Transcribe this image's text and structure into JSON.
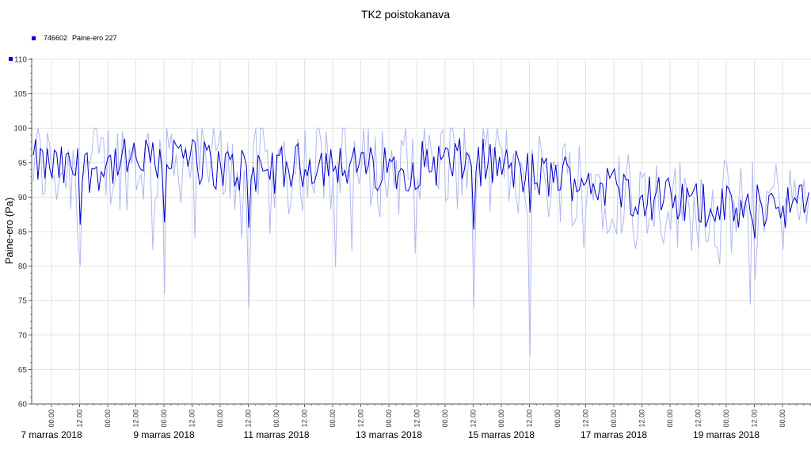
{
  "chart_data": {
    "type": "line",
    "title": "TK2 poistokanava",
    "ylabel": "Paine-ero (Pa)",
    "xlabel": "",
    "ylim": [
      60,
      110
    ],
    "y_ticks": [
      "60",
      "65",
      "70",
      "75",
      "80",
      "85",
      "90",
      "95",
      "100",
      "105",
      "110"
    ],
    "grid": true,
    "legend_position": "top-left",
    "series": [
      {
        "name": "746602 Paine-ero 227",
        "legend_id": "746602",
        "legend_label": "Paine-ero 227",
        "color": "#0000cc",
        "light_color": "#b0b8f0",
        "x_start": "7 marras 2018 00.00",
        "x_end": "20 marras 2018 12.00",
        "interval_hours": 1,
        "profile_12h": [
          95,
          94,
          94,
          95,
          95,
          96,
          95,
          94,
          94,
          94,
          95,
          95,
          94,
          94,
          95,
          95,
          95,
          94,
          93,
          93,
          92,
          91,
          90,
          89,
          89,
          88,
          89,
          89,
          88,
          87,
          86,
          85,
          87,
          89,
          91,
          92,
          92,
          93,
          93,
          93,
          93,
          94,
          94,
          95,
          95,
          95,
          96,
          96,
          96,
          96,
          95,
          95,
          94,
          94,
          93,
          92,
          92,
          93,
          93,
          94,
          93,
          92,
          94,
          94,
          94
        ],
        "noise_amplitude": 3.5,
        "notable_minima": [
          {
            "time": "7 marras 2018 12.00",
            "value": 80
          },
          {
            "time": "9 marras 2018 00.00",
            "value": 76
          },
          {
            "time": "10 marras 2018 12.00",
            "value": 74
          },
          {
            "time": "14 marras 2018 12.00",
            "value": 74
          },
          {
            "time": "15 marras 2018 12.00",
            "value": 67
          },
          {
            "time": "19 marras 2018 12.00",
            "value": 78
          }
        ],
        "max": 100
      }
    ],
    "x_tick_labels": [
      "00.00",
      "12.00",
      "00.00",
      "12.00",
      "00.00",
      "12.00",
      "00.00",
      "12.00",
      "00.00",
      "12.00",
      "00.00",
      "12.00",
      "00.00",
      "12.00",
      "00.00",
      "12.00",
      "00.00",
      "12.00",
      "00.00",
      "12.00",
      "00.00",
      "12.00",
      "00.00",
      "12.00",
      "00.00",
      "12.00",
      "00.00"
    ],
    "date_labels": [
      "7 marras 2018",
      "9 marras 2018",
      "11 marras 2018",
      "13 marras 2018",
      "15 marras 2018",
      "17 marras 2018",
      "19 marras 2018"
    ]
  }
}
